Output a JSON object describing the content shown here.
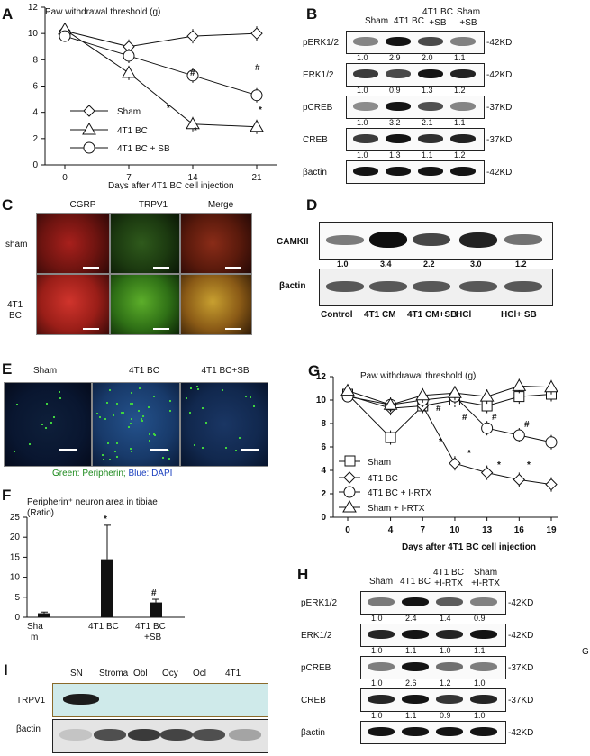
{
  "panels": {
    "A": {
      "label": "A",
      "chart_data": {
        "type": "line",
        "title": "Paw withdrawal threshold (g)",
        "xlabel": "Days after 4T1 BC cell injection",
        "x": [
          0,
          7,
          14,
          21
        ],
        "ylim": [
          0,
          12
        ],
        "yticks": [
          0,
          2,
          4,
          6,
          8,
          10,
          12
        ],
        "series": [
          {
            "name": "Sham",
            "marker": "diamond",
            "values": [
              10.2,
              9.0,
              9.8,
              10.0
            ]
          },
          {
            "name": "4T1 BC",
            "marker": "triangle",
            "values": [
              10.3,
              7.0,
              3.1,
              2.9
            ]
          },
          {
            "name": "4T1 BC + SB",
            "marker": "circle",
            "values": [
              9.8,
              8.3,
              6.8,
              5.3
            ]
          }
        ],
        "annotations": {
          "star": "*",
          "hash": "#"
        }
      }
    },
    "B": {
      "label": "B",
      "columns": [
        "Sham",
        "4T1 BC",
        "4T1 BC\n+SB",
        "Sham\n+SB"
      ],
      "col1": "Sham",
      "col2": "4T1 BC",
      "col3a": "4T1 BC",
      "col3b": "+SB",
      "col4a": "Sham",
      "col4b": "+SB",
      "rows": [
        {
          "name": "pERK1/2",
          "kd": "42KD",
          "values": [
            "1.0",
            "2.9",
            "2.0",
            "1.1"
          ]
        },
        {
          "name": "ERK1/2",
          "kd": "42KD",
          "values": [
            "1.0",
            "0.9",
            "1.3",
            "1.2"
          ]
        },
        {
          "name": "pCREB",
          "kd": "37KD",
          "values": [
            "1.0",
            "3.2",
            "2.1",
            "1.1"
          ]
        },
        {
          "name": "CREB",
          "kd": "37KD",
          "values": [
            "1.0",
            "1.3",
            "1.1",
            "1.2"
          ]
        },
        {
          "name": "βactin",
          "kd": "42KD",
          "values": []
        }
      ]
    },
    "C": {
      "label": "C",
      "columns": [
        "CGRP",
        "TRPV1",
        "Merge"
      ],
      "rows": [
        "sham",
        "4T1\nBC"
      ],
      "row2a": "4T1",
      "row2b": "BC"
    },
    "D": {
      "label": "D",
      "rows": [
        "CAMKII",
        "βactin"
      ],
      "values": [
        "1.0",
        "3.4",
        "2.2",
        "3.0",
        "1.2"
      ],
      "columns": [
        "Control",
        "4T1 CM",
        "4T1 CM+SB",
        "HCl",
        "HCl+ SB"
      ]
    },
    "E": {
      "label": "E",
      "columns": [
        "Sham",
        "4T1 BC",
        "4T1 BC+SB"
      ],
      "caption_green": "Green: Peripherin;",
      "caption_blue": "Blue: DAPI"
    },
    "F": {
      "label": "F",
      "chart_data": {
        "type": "bar",
        "title": "Peripherin⁺ neuron area in tibiae (Ratio)",
        "title1": "Peripherin⁺ neuron area in tibiae",
        "title2": "(Ratio)",
        "categories": [
          "Sham",
          "4T1 BC",
          "4T1 BC +SB"
        ],
        "cat1a": "Sha",
        "cat1b": "m",
        "cat2": "4T1 BC",
        "cat3a": "4T1 BC",
        "cat3b": "+SB",
        "values": [
          1.0,
          14.5,
          3.7
        ],
        "errors": [
          0.3,
          8.5,
          0.8
        ],
        "ylim": [
          0,
          25
        ],
        "yticks": [
          0,
          5,
          10,
          15,
          20,
          25
        ],
        "annotations": {
          "star": "*",
          "hash": "#"
        }
      }
    },
    "G": {
      "label": "G",
      "chart_data": {
        "type": "line",
        "title": "Paw withdrawal threshold (g)",
        "xlabel": "Days after 4T1 BC cell injection",
        "x": [
          0,
          4,
          7,
          10,
          13,
          16,
          19
        ],
        "ylim": [
          0,
          12
        ],
        "yticks": [
          0,
          2,
          4,
          6,
          8,
          10,
          12
        ],
        "series": [
          {
            "name": "Sham",
            "marker": "square",
            "values": [
              10.5,
              6.8,
              9.5,
              10.0,
              9.5,
              10.3,
              10.5
            ]
          },
          {
            "name": "4T1 BC",
            "marker": "diamond",
            "values": [
              10.4,
              9.3,
              9.5,
              4.6,
              3.8,
              3.2,
              2.8
            ]
          },
          {
            "name": "4T1 BC + I-RTX",
            "marker": "circle",
            "values": [
              10.3,
              9.6,
              10.0,
              10.3,
              7.6,
              7.0,
              6.4
            ]
          },
          {
            "name": "Sham + I-RTX",
            "marker": "triangle",
            "values": [
              10.8,
              9.6,
              10.4,
              10.6,
              10.3,
              11.2,
              11.1
            ]
          }
        ],
        "annotations": {
          "star": "*",
          "hash": "#"
        }
      }
    },
    "H": {
      "label": "H",
      "col1": "Sham",
      "col2": "4T1 BC",
      "col3a": "4T1 BC",
      "col3b": "+I-RTX",
      "col4a": "Sham",
      "col4b": "+I-RTX",
      "rows": [
        {
          "name": "pERK1/2",
          "kd": "42KD",
          "values": [
            "1.0",
            "2.4",
            "1.4",
            "0.9"
          ]
        },
        {
          "name": "ERK1/2",
          "kd": "42KD",
          "values": [
            "1.0",
            "1.1",
            "1.0",
            "1.1"
          ]
        },
        {
          "name": "pCREB",
          "kd": "37KD",
          "values": [
            "1.0",
            "2.6",
            "1.2",
            "1.0"
          ]
        },
        {
          "name": "CREB",
          "kd": "37KD",
          "values": [
            "1.0",
            "1.1",
            "0.9",
            "1.0"
          ]
        },
        {
          "name": "βactin",
          "kd": "42KD",
          "values": []
        }
      ],
      "stray_letter": "G"
    },
    "I": {
      "label": "I",
      "columns": [
        "SN",
        "Stroma",
        "Obl",
        "Ocy",
        "Ocl",
        "4T1"
      ],
      "rows": [
        "TRPV1",
        "βactin"
      ]
    }
  }
}
